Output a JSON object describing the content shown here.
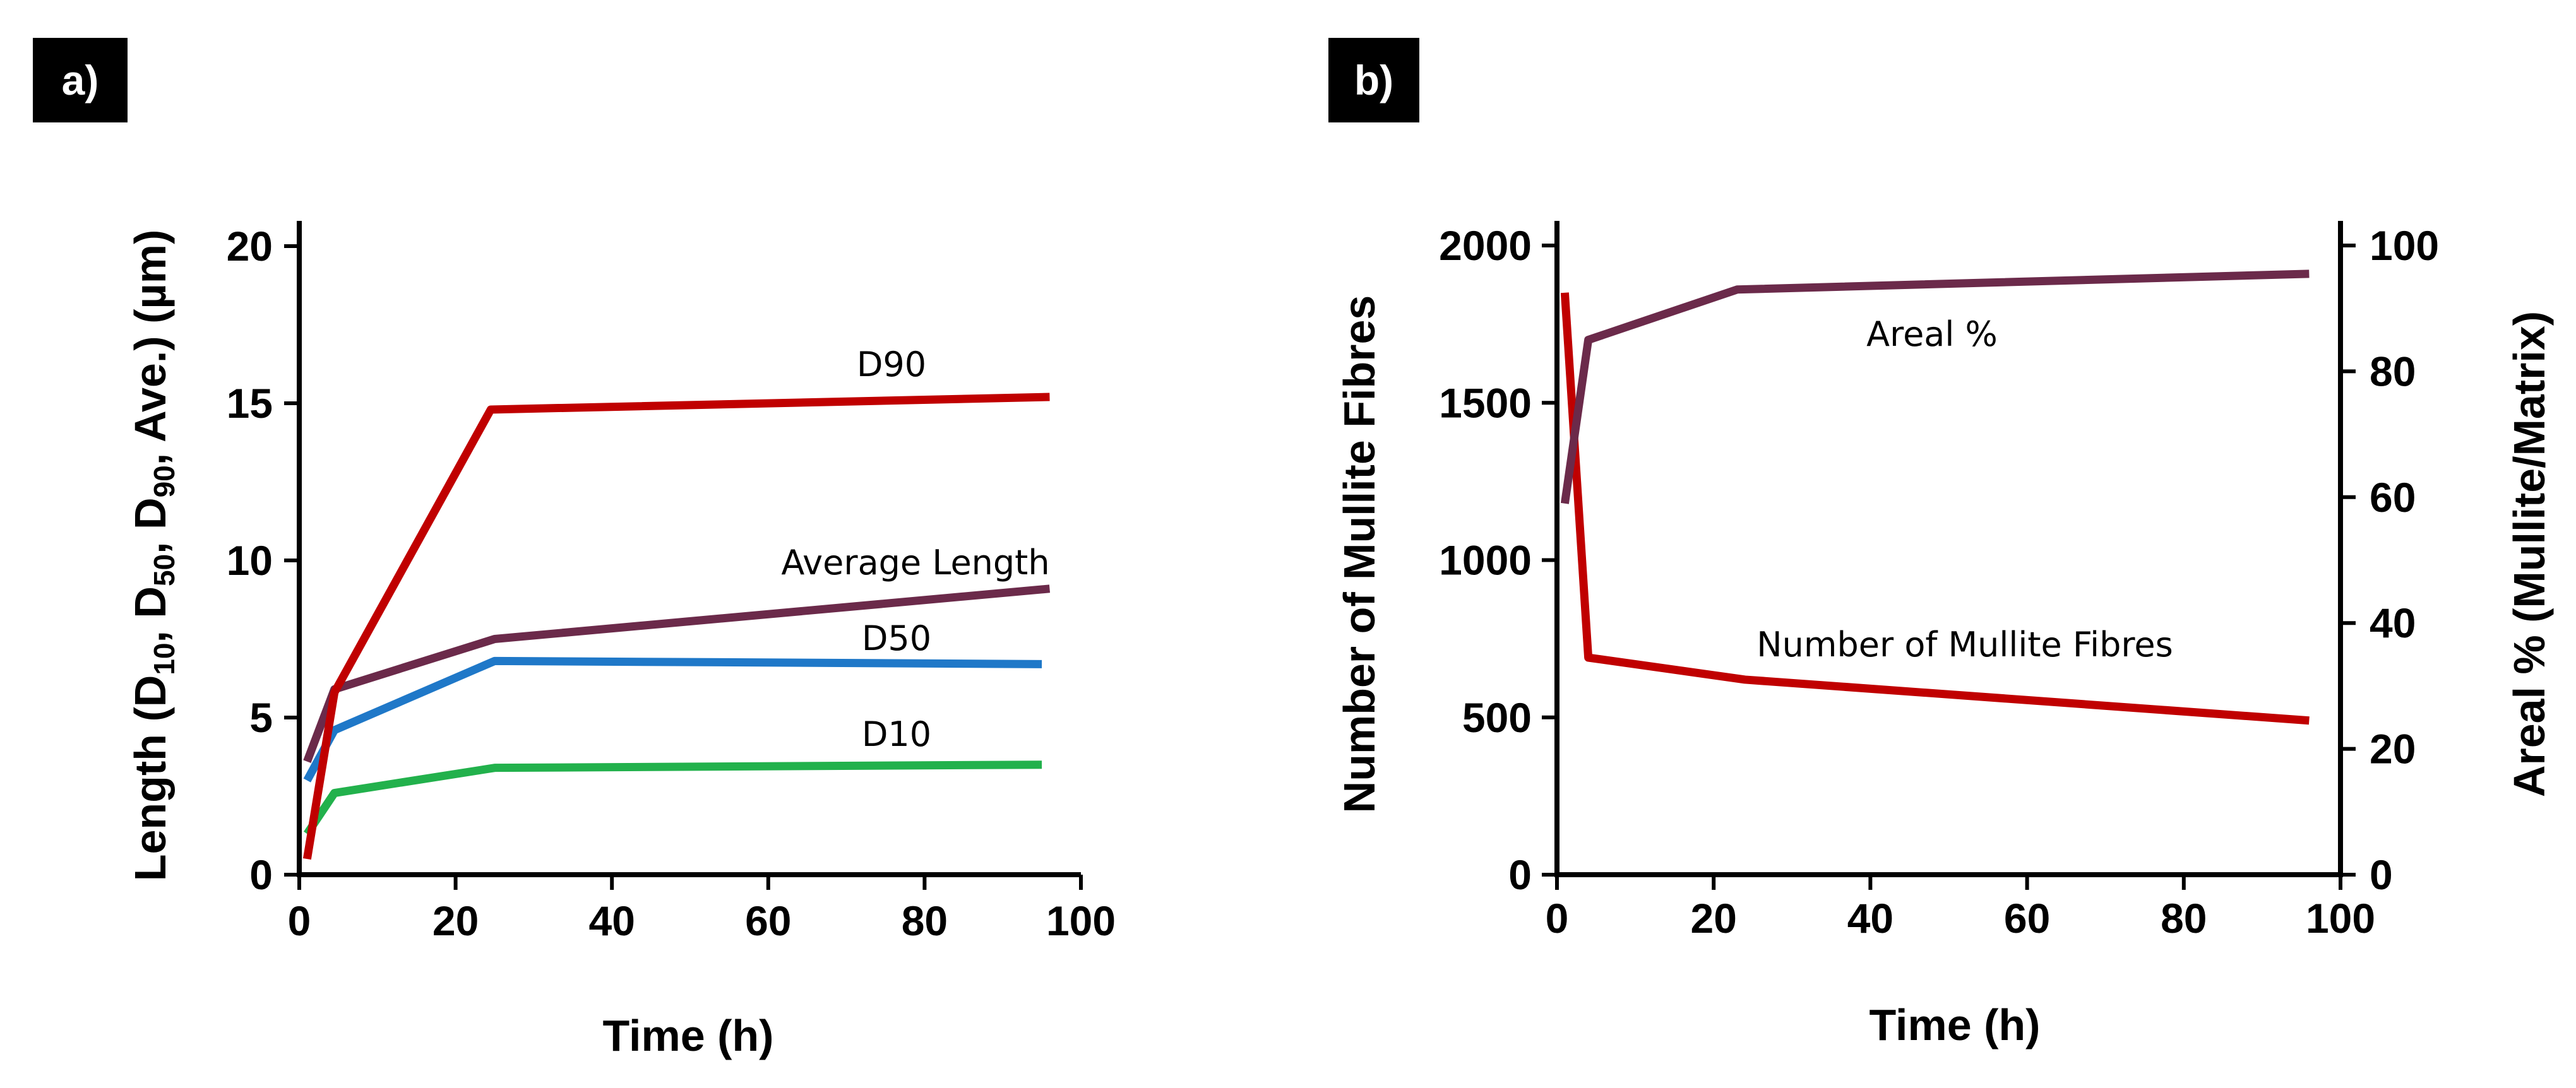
{
  "panels": [
    {
      "label": "a)",
      "chart_data": {
        "type": "line",
        "xlabel": "Time (h)",
        "ylabel_parts": [
          "Length (D",
          "10",
          ",  D",
          "50",
          ",  D",
          "90",
          ", Ave.) (µm)"
        ],
        "xlim": [
          0,
          100
        ],
        "ylim": [
          0,
          20
        ],
        "xticks": [
          "0",
          "20",
          "40",
          "60",
          "80",
          "100"
        ],
        "yticks": [
          "0",
          "5",
          "10",
          "15",
          "20"
        ],
        "series": [
          {
            "name": "D90",
            "color": "#c00000",
            "x": [
              1,
              4.5,
              24.5,
              96
            ],
            "y": [
              0.5,
              5.8,
              14.8,
              15.2
            ]
          },
          {
            "name": "Average Length",
            "color": "#6b2a4a",
            "x": [
              1,
              4.5,
              25,
              96
            ],
            "y": [
              3.6,
              5.9,
              7.5,
              9.1
            ]
          },
          {
            "name": "D50",
            "color": "#1f78c8",
            "x": [
              1,
              4.5,
              25,
              95
            ],
            "y": [
              3.0,
              4.6,
              6.8,
              6.7
            ]
          },
          {
            "name": "D10",
            "color": "#22b14c",
            "x": [
              1,
              4.5,
              25,
              95
            ],
            "y": [
              1.3,
              2.6,
              3.4,
              3.5
            ]
          }
        ]
      }
    },
    {
      "label": "b)",
      "chart_data": {
        "type": "line",
        "xlabel": "Time (h)",
        "ylabel_left": "Number of Mullite Fibres",
        "ylabel_right": "Areal % (Mullite/Matrix)",
        "xlim": [
          0,
          100
        ],
        "ylim_left": [
          0,
          2000
        ],
        "ylim_right": [
          0,
          100
        ],
        "xticks": [
          "0",
          "20",
          "40",
          "60",
          "80",
          "100"
        ],
        "yticks_left": [
          "0",
          "500",
          "1000",
          "1500",
          "2000"
        ],
        "yticks_right": [
          "0",
          "20",
          "40",
          "60",
          "80",
          "100"
        ],
        "series": [
          {
            "name": "Number of Mullite Fibres",
            "axis": "left",
            "color": "#c00000",
            "x": [
              1,
              4,
              24,
              96
            ],
            "y": [
              1850,
              690,
              620,
              490
            ]
          },
          {
            "name": "Areal %",
            "axis": "right",
            "color": "#6b2a4a",
            "x": [
              1,
              4,
              23,
              96
            ],
            "y": [
              59,
              85,
              93,
              95.5
            ]
          }
        ]
      }
    }
  ]
}
